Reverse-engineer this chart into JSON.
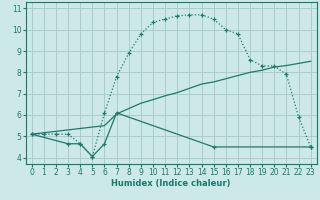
{
  "title": "",
  "xlabel": "Humidex (Indice chaleur)",
  "bg_color": "#cce8e8",
  "grid_color": "#aacccc",
  "line_color": "#1a7a6a",
  "xlim": [
    -0.5,
    23.5
  ],
  "ylim": [
    3.7,
    11.3
  ],
  "xticks": [
    0,
    1,
    2,
    3,
    4,
    5,
    6,
    7,
    8,
    9,
    10,
    11,
    12,
    13,
    14,
    15,
    16,
    17,
    18,
    19,
    20,
    21,
    22,
    23
  ],
  "yticks": [
    4,
    5,
    6,
    7,
    8,
    9,
    10,
    11
  ],
  "curve1_x": [
    0,
    1,
    2,
    3,
    4,
    5,
    6,
    7,
    8,
    9,
    10,
    11,
    12,
    13,
    14,
    15,
    16,
    17,
    18,
    19,
    20,
    21,
    22,
    23
  ],
  "curve1_y": [
    5.1,
    5.1,
    5.1,
    5.1,
    4.65,
    4.05,
    6.1,
    7.8,
    8.9,
    9.8,
    10.35,
    10.5,
    10.65,
    10.7,
    10.7,
    10.5,
    10.0,
    9.8,
    8.6,
    8.3,
    8.3,
    7.9,
    5.9,
    4.5
  ],
  "curve2_x": [
    0,
    6,
    7,
    8,
    9,
    10,
    11,
    12,
    13,
    14,
    15,
    16,
    17,
    18,
    19,
    20,
    21,
    22,
    23
  ],
  "curve2_y": [
    5.1,
    5.5,
    6.05,
    6.3,
    6.55,
    6.72,
    6.9,
    7.05,
    7.25,
    7.45,
    7.55,
    7.7,
    7.85,
    8.0,
    8.1,
    8.25,
    8.32,
    8.42,
    8.52
  ],
  "curve3_x": [
    0,
    3,
    4,
    5,
    6,
    7,
    15,
    23
  ],
  "curve3_y": [
    5.1,
    4.65,
    4.65,
    4.05,
    4.65,
    6.1,
    4.5,
    4.5
  ]
}
